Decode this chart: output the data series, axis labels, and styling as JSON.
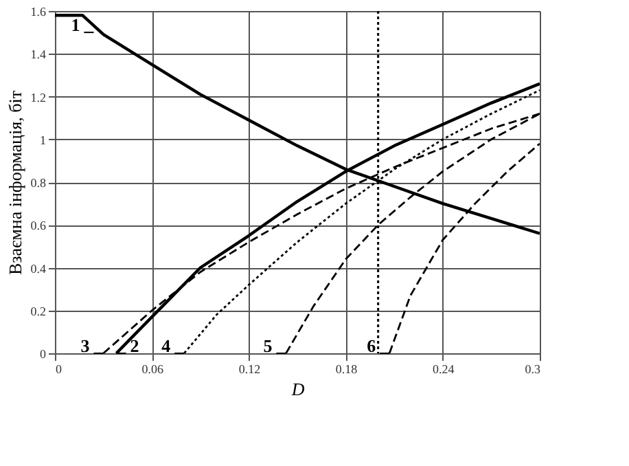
{
  "chart_data": {
    "type": "line",
    "xlabel": "D",
    "ylabel": "Взаємна інформація, біт",
    "xlim": [
      0,
      0.3
    ],
    "ylim": [
      0,
      1.6
    ],
    "xticks": [
      0,
      0.06,
      0.12,
      0.18,
      0.24,
      0.3
    ],
    "yticks": [
      0,
      0.2,
      0.4,
      0.6,
      0.8,
      1,
      1.2,
      1.4,
      1.6
    ],
    "grid": true,
    "series": [
      {
        "color": "#000000",
        "line_style": "solid",
        "x": [
          0,
          0.017,
          0.03,
          0.06,
          0.09,
          0.12,
          0.15,
          0.18,
          0.21,
          0.24,
          0.27,
          0.3
        ],
        "values": [
          1.58,
          1.58,
          1.49,
          1.35,
          1.21,
          1.09,
          0.97,
          0.86,
          0.78,
          0.7,
          0.63,
          0.56
        ]
      },
      {
        "color": "#000000",
        "line_style": "solid",
        "x": [
          0.038,
          0.06,
          0.09,
          0.12,
          0.15,
          0.18,
          0.21,
          0.24,
          0.27,
          0.3
        ],
        "values": [
          0,
          0.17,
          0.4,
          0.55,
          0.71,
          0.85,
          0.97,
          1.07,
          1.17,
          1.26
        ]
      },
      {
        "color": "#000000",
        "line_style": "dashed",
        "x": [
          0.03,
          0.06,
          0.09,
          0.12,
          0.15,
          0.18,
          0.21,
          0.24,
          0.27,
          0.3
        ],
        "values": [
          0,
          0.2,
          0.38,
          0.52,
          0.65,
          0.77,
          0.87,
          0.96,
          1.05,
          1.12
        ]
      },
      {
        "color": "#000000",
        "line_style": "dotted",
        "x": [
          0.08,
          0.1,
          0.12,
          0.15,
          0.18,
          0.21,
          0.24,
          0.27,
          0.3
        ],
        "values": [
          0,
          0.18,
          0.32,
          0.52,
          0.7,
          0.86,
          1.0,
          1.12,
          1.23
        ]
      },
      {
        "color": "#000000",
        "line_style": "dashed",
        "x": [
          0.143,
          0.16,
          0.18,
          0.2,
          0.22,
          0.24,
          0.27,
          0.3
        ],
        "values": [
          0,
          0.22,
          0.44,
          0.6,
          0.73,
          0.85,
          1.0,
          1.12
        ]
      },
      {
        "color": "#000000",
        "line_style": "dashed",
        "x": [
          0.207,
          0.22,
          0.24,
          0.26,
          0.28,
          0.3
        ],
        "values": [
          0,
          0.27,
          0.53,
          0.7,
          0.85,
          0.98
        ]
      }
    ],
    "ref_lines": [
      {
        "axis": "x",
        "value": 0.2,
        "line_style": "dotted",
        "color": "#000000"
      }
    ],
    "annotations": [
      {
        "text": "1",
        "x": 0.024,
        "y": 1.5
      },
      {
        "text": "2",
        "x": 0.038,
        "y": 0
      },
      {
        "text": "3",
        "x": 0.03,
        "y": 0
      },
      {
        "text": "4",
        "x": 0.08,
        "y": 0
      },
      {
        "text": "5",
        "x": 0.143,
        "y": 0
      },
      {
        "text": "6",
        "x": 0.207,
        "y": 0
      }
    ]
  }
}
